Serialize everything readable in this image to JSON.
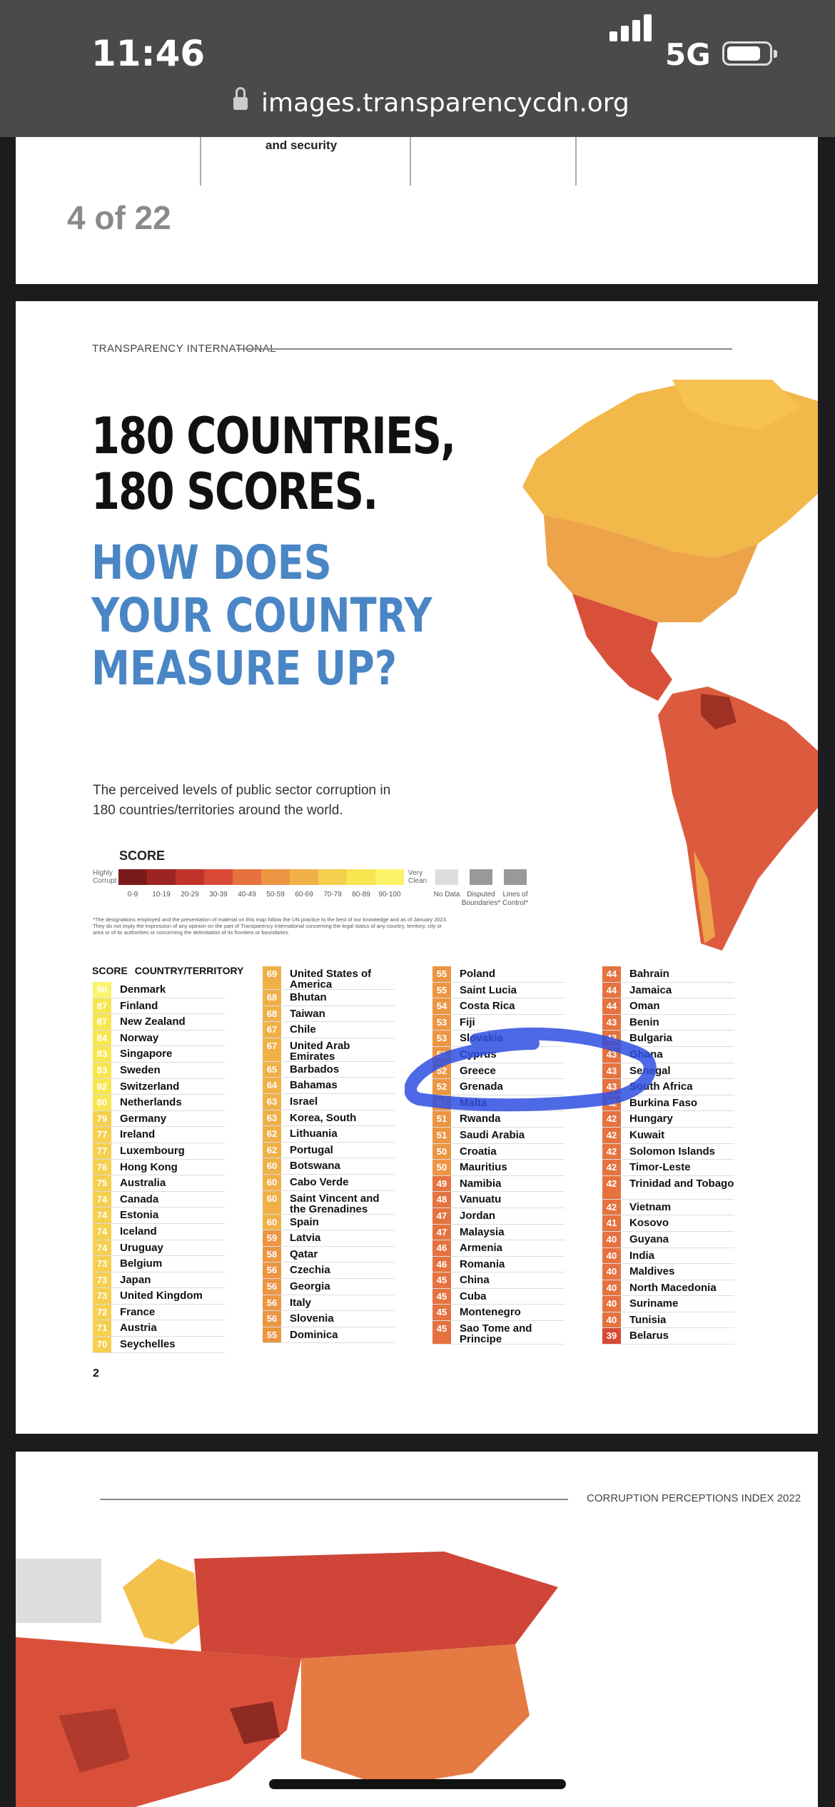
{
  "status_bar": {
    "time": "11:46",
    "network": "5G"
  },
  "browser": {
    "url": "images.transparencycdn.org"
  },
  "prev_page": {
    "fragment_text": "and security",
    "page_indicator": "4 of 22"
  },
  "page": {
    "header": "TRANSPARENCY INTERNATIONAL",
    "title_line1": "180 COUNTRIES,\n180 SCORES.",
    "title_line2": "HOW DOES\nYOUR COUNTRY\nMEASURE UP?",
    "description": "The perceived levels of public sector corruption in 180 countries/territories around the world.",
    "legend": {
      "title": "SCORE",
      "left_label": "Highly Corrupt",
      "right_label": "Very Clean",
      "ranges": [
        "0-9",
        "10-19",
        "20-29",
        "30-39",
        "40-49",
        "50-59",
        "60-69",
        "70-79",
        "80-89",
        "90-100"
      ],
      "colors": [
        "#7a1b1b",
        "#9e2323",
        "#c0332b",
        "#d84a35",
        "#e5723f",
        "#ec9543",
        "#f0b048",
        "#f5cf4d",
        "#f8e650",
        "#fbf36a"
      ],
      "no_data": "No Data",
      "disputed": "Disputed Boundaries*",
      "lines_of_control": "Lines of Control*"
    },
    "footnote": "*The designations employed and the presentation of material on this map follow the UN practice to the best of our knowledge and as of January 2023. They do not imply the expression of any opinion on the part of Transparency International concerning the legal status of any country, territory, city or area or of its authorities or concerning the delimitation of its frontiers or boundaries.",
    "table_header": {
      "score": "SCORE",
      "country": "COUNTRY/TERRITORY"
    },
    "columns": [
      [
        {
          "score": "90",
          "name": "Denmark"
        },
        {
          "score": "87",
          "name": "Finland"
        },
        {
          "score": "87",
          "name": "New Zealand"
        },
        {
          "score": "84",
          "name": "Norway"
        },
        {
          "score": "83",
          "name": "Singapore"
        },
        {
          "score": "83",
          "name": "Sweden"
        },
        {
          "score": "82",
          "name": "Switzerland"
        },
        {
          "score": "80",
          "name": "Netherlands"
        },
        {
          "score": "79",
          "name": "Germany"
        },
        {
          "score": "77",
          "name": "Ireland"
        },
        {
          "score": "77",
          "name": "Luxembourg"
        },
        {
          "score": "76",
          "name": "Hong Kong"
        },
        {
          "score": "75",
          "name": "Australia"
        },
        {
          "score": "74",
          "name": "Canada"
        },
        {
          "score": "74",
          "name": "Estonia"
        },
        {
          "score": "74",
          "name": "Iceland"
        },
        {
          "score": "74",
          "name": "Uruguay"
        },
        {
          "score": "73",
          "name": "Belgium"
        },
        {
          "score": "73",
          "name": "Japan"
        },
        {
          "score": "73",
          "name": "United Kingdom"
        },
        {
          "score": "72",
          "name": "France"
        },
        {
          "score": "71",
          "name": "Austria"
        },
        {
          "score": "70",
          "name": "Seychelles"
        }
      ],
      [
        {
          "score": "69",
          "name": "United States of America"
        },
        {
          "score": "68",
          "name": "Bhutan"
        },
        {
          "score": "68",
          "name": "Taiwan"
        },
        {
          "score": "67",
          "name": "Chile"
        },
        {
          "score": "67",
          "name": "United Arab Emirates"
        },
        {
          "score": "65",
          "name": "Barbados"
        },
        {
          "score": "64",
          "name": "Bahamas"
        },
        {
          "score": "63",
          "name": "Israel"
        },
        {
          "score": "63",
          "name": "Korea, South"
        },
        {
          "score": "62",
          "name": "Lithuania"
        },
        {
          "score": "62",
          "name": "Portugal"
        },
        {
          "score": "60",
          "name": "Botswana"
        },
        {
          "score": "60",
          "name": "Cabo Verde"
        },
        {
          "score": "60",
          "name": "Saint Vincent and the Grenadines"
        },
        {
          "score": "60",
          "name": "Spain"
        },
        {
          "score": "59",
          "name": "Latvia"
        },
        {
          "score": "58",
          "name": "Qatar"
        },
        {
          "score": "56",
          "name": "Czechia"
        },
        {
          "score": "56",
          "name": "Georgia"
        },
        {
          "score": "56",
          "name": "Italy"
        },
        {
          "score": "56",
          "name": "Slovenia"
        },
        {
          "score": "55",
          "name": "Dominica"
        }
      ],
      [
        {
          "score": "55",
          "name": "Poland"
        },
        {
          "score": "55",
          "name": "Saint Lucia"
        },
        {
          "score": "54",
          "name": "Costa Rica"
        },
        {
          "score": "53",
          "name": "Fiji"
        },
        {
          "score": "53",
          "name": "Slovakia"
        },
        {
          "score": "52",
          "name": "Cyprus"
        },
        {
          "score": "52",
          "name": "Greece"
        },
        {
          "score": "52",
          "name": "Grenada"
        },
        {
          "score": "51",
          "name": "Malta"
        },
        {
          "score": "51",
          "name": "Rwanda"
        },
        {
          "score": "51",
          "name": "Saudi Arabia"
        },
        {
          "score": "50",
          "name": "Croatia"
        },
        {
          "score": "50",
          "name": "Mauritius"
        },
        {
          "score": "49",
          "name": "Namibia"
        },
        {
          "score": "48",
          "name": "Vanuatu"
        },
        {
          "score": "47",
          "name": "Jordan"
        },
        {
          "score": "47",
          "name": "Malaysia"
        },
        {
          "score": "46",
          "name": "Armenia"
        },
        {
          "score": "46",
          "name": "Romania"
        },
        {
          "score": "45",
          "name": "China"
        },
        {
          "score": "45",
          "name": "Cuba"
        },
        {
          "score": "45",
          "name": "Montenegro"
        },
        {
          "score": "45",
          "name": "Sao Tome and Principe"
        }
      ],
      [
        {
          "score": "44",
          "name": "Bahrain"
        },
        {
          "score": "44",
          "name": "Jamaica"
        },
        {
          "score": "44",
          "name": "Oman"
        },
        {
          "score": "43",
          "name": "Benin"
        },
        {
          "score": "43",
          "name": "Bulgaria"
        },
        {
          "score": "43",
          "name": "Ghana"
        },
        {
          "score": "43",
          "name": "Senegal"
        },
        {
          "score": "43",
          "name": "South Africa"
        },
        {
          "score": "42",
          "name": "Burkina Faso"
        },
        {
          "score": "42",
          "name": "Hungary"
        },
        {
          "score": "42",
          "name": "Kuwait"
        },
        {
          "score": "42",
          "name": "Solomon Islands"
        },
        {
          "score": "42",
          "name": "Timor-Leste"
        },
        {
          "score": "42",
          "name": "Trinidad and Tobago"
        },
        {
          "score": "42",
          "name": "Vietnam"
        },
        {
          "score": "41",
          "name": "Kosovo"
        },
        {
          "score": "40",
          "name": "Guyana"
        },
        {
          "score": "40",
          "name": "India"
        },
        {
          "score": "40",
          "name": "Maldives"
        },
        {
          "score": "40",
          "name": "North Macedonia"
        },
        {
          "score": "40",
          "name": "Suriname"
        },
        {
          "score": "40",
          "name": "Tunisia"
        },
        {
          "score": "39",
          "name": "Belarus"
        }
      ]
    ],
    "page_number": "2"
  },
  "next_page": {
    "header": "CORRUPTION PERCEPTIONS INDEX 2022"
  }
}
